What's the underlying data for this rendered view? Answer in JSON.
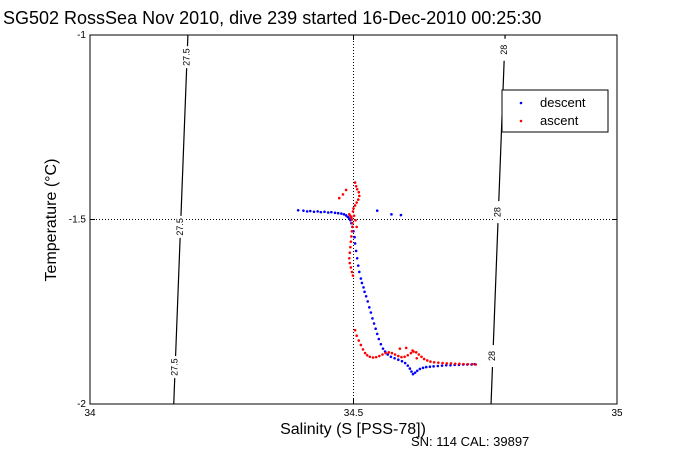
{
  "chart_data": {
    "type": "scatter",
    "title": "SG502 RossSea Nov 2010, dive 239 started 16-Dec-2010 00:25:30",
    "xlabel": "Salinity (S [PSS-78])",
    "ylabel": "Temperature (°C)",
    "footer": "SN: 114  CAL: 39897",
    "xlim": [
      34,
      35
    ],
    "ylim": [
      -2,
      -1
    ],
    "xticks": [
      34,
      34.5,
      35
    ],
    "xtick_labels": [
      "34",
      "34.5",
      "35"
    ],
    "yticks": [
      -1,
      -1.5,
      -2
    ],
    "ytick_labels": [
      "-1",
      "-1.5",
      "-2"
    ],
    "grid": "dotted lines at x=34.5 and y=-1.5",
    "legend_position": "top-right",
    "isopycnals": [
      {
        "label": "27.5",
        "color": "#000000",
        "points": [
          [
            34.1858,
            -1.0
          ],
          [
            34.1589,
            -2.0
          ]
        ],
        "label_y": [
          -1.06,
          -1.52,
          -1.9
        ]
      },
      {
        "label": "28",
        "color": "#000000",
        "points": [
          [
            34.7877,
            -1.0
          ],
          [
            34.761,
            -2.0
          ]
        ],
        "label_y": [
          -1.04,
          -1.48,
          -1.87
        ]
      }
    ],
    "series": [
      {
        "name": "descent",
        "color": "#0000ff",
        "marker": "dot",
        "points": [
          [
            34.395,
            -1.475
          ],
          [
            34.405,
            -1.476
          ],
          [
            34.412,
            -1.478
          ],
          [
            34.418,
            -1.477
          ],
          [
            34.425,
            -1.479
          ],
          [
            34.432,
            -1.478
          ],
          [
            34.438,
            -1.48
          ],
          [
            34.445,
            -1.479
          ],
          [
            34.452,
            -1.481
          ],
          [
            34.458,
            -1.48
          ],
          [
            34.465,
            -1.482
          ],
          [
            34.471,
            -1.483
          ],
          [
            34.477,
            -1.484
          ],
          [
            34.482,
            -1.486
          ],
          [
            34.486,
            -1.489
          ],
          [
            34.489,
            -1.493
          ],
          [
            34.492,
            -1.497
          ],
          [
            34.494,
            -1.502
          ],
          [
            34.496,
            -1.51
          ],
          [
            34.498,
            -1.52
          ],
          [
            34.5,
            -1.532
          ],
          [
            34.502,
            -1.548
          ],
          [
            34.503,
            -1.565
          ],
          [
            34.505,
            -1.585
          ],
          [
            34.507,
            -1.605
          ],
          [
            34.509,
            -1.625
          ],
          [
            34.511,
            -1.642
          ],
          [
            34.514,
            -1.66
          ],
          [
            34.516,
            -1.672
          ],
          [
            34.519,
            -1.684
          ],
          [
            34.521,
            -1.696
          ],
          [
            34.524,
            -1.708
          ],
          [
            34.527,
            -1.722
          ],
          [
            34.53,
            -1.738
          ],
          [
            34.533,
            -1.752
          ],
          [
            34.536,
            -1.768
          ],
          [
            34.539,
            -1.782
          ],
          [
            34.542,
            -1.796
          ],
          [
            34.545,
            -1.81
          ],
          [
            34.548,
            -1.824
          ],
          [
            34.552,
            -1.838
          ],
          [
            34.556,
            -1.85
          ],
          [
            34.56,
            -1.858
          ],
          [
            34.565,
            -1.866
          ],
          [
            34.571,
            -1.872
          ],
          [
            34.578,
            -1.876
          ],
          [
            34.585,
            -1.88
          ],
          [
            34.592,
            -1.884
          ],
          [
            34.598,
            -1.889
          ],
          [
            34.603,
            -1.896
          ],
          [
            34.607,
            -1.904
          ],
          [
            34.61,
            -1.912
          ],
          [
            34.613,
            -1.919
          ],
          [
            34.617,
            -1.915
          ],
          [
            34.621,
            -1.91
          ],
          [
            34.626,
            -1.905
          ],
          [
            34.632,
            -1.902
          ],
          [
            34.638,
            -1.9
          ],
          [
            34.645,
            -1.899
          ],
          [
            34.652,
            -1.898
          ],
          [
            34.66,
            -1.897
          ],
          [
            34.668,
            -1.896
          ],
          [
            34.676,
            -1.895
          ],
          [
            34.684,
            -1.895
          ],
          [
            34.692,
            -1.894
          ],
          [
            34.7,
            -1.894
          ],
          [
            34.708,
            -1.893
          ],
          [
            34.716,
            -1.893
          ],
          [
            34.724,
            -1.893
          ],
          [
            34.73,
            -1.892
          ],
          [
            34.545,
            -1.476
          ],
          [
            34.572,
            -1.486
          ],
          [
            34.59,
            -1.488
          ]
        ]
      },
      {
        "name": "ascent",
        "color": "#ff0000",
        "marker": "dot",
        "points": [
          [
            34.492,
            -1.486
          ],
          [
            34.494,
            -1.49
          ],
          [
            34.496,
            -1.494
          ],
          [
            34.497,
            -1.5
          ],
          [
            34.498,
            -1.51
          ],
          [
            34.498,
            -1.52
          ],
          [
            34.497,
            -1.532
          ],
          [
            34.496,
            -1.546
          ],
          [
            34.495,
            -1.56
          ],
          [
            34.494,
            -1.575
          ],
          [
            34.493,
            -1.59
          ],
          [
            34.492,
            -1.605
          ],
          [
            34.493,
            -1.618
          ],
          [
            34.495,
            -1.63
          ],
          [
            34.497,
            -1.642
          ],
          [
            34.499,
            -1.652
          ],
          [
            34.503,
            -1.4
          ],
          [
            34.505,
            -1.41
          ],
          [
            34.507,
            -1.418
          ],
          [
            34.51,
            -1.426
          ],
          [
            34.511,
            -1.436
          ],
          [
            34.509,
            -1.446
          ],
          [
            34.506,
            -1.454
          ],
          [
            34.503,
            -1.462
          ],
          [
            34.5,
            -1.47
          ],
          [
            34.499,
            -1.478
          ],
          [
            34.501,
            -1.49
          ],
          [
            34.504,
            -1.502
          ],
          [
            34.506,
            -1.52
          ],
          [
            34.486,
            -1.42
          ],
          [
            34.48,
            -1.432
          ],
          [
            34.473,
            -1.442
          ],
          [
            34.503,
            -1.8
          ],
          [
            34.506,
            -1.815
          ],
          [
            34.51,
            -1.828
          ],
          [
            34.514,
            -1.84
          ],
          [
            34.518,
            -1.852
          ],
          [
            34.522,
            -1.862
          ],
          [
            34.526,
            -1.868
          ],
          [
            34.531,
            -1.872
          ],
          [
            34.537,
            -1.874
          ],
          [
            34.543,
            -1.873
          ],
          [
            34.549,
            -1.87
          ],
          [
            34.555,
            -1.866
          ],
          [
            34.561,
            -1.862
          ],
          [
            34.567,
            -1.86
          ],
          [
            34.573,
            -1.862
          ],
          [
            34.579,
            -1.866
          ],
          [
            34.585,
            -1.87
          ],
          [
            34.591,
            -1.873
          ],
          [
            34.597,
            -1.872
          ],
          [
            34.603,
            -1.868
          ],
          [
            34.609,
            -1.862
          ],
          [
            34.614,
            -1.858
          ],
          [
            34.619,
            -1.86
          ],
          [
            34.624,
            -1.866
          ],
          [
            34.629,
            -1.872
          ],
          [
            34.634,
            -1.878
          ],
          [
            34.64,
            -1.882
          ],
          [
            34.646,
            -1.885
          ],
          [
            34.653,
            -1.887
          ],
          [
            34.661,
            -1.888
          ],
          [
            34.669,
            -1.889
          ],
          [
            34.677,
            -1.89
          ],
          [
            34.685,
            -1.89
          ],
          [
            34.693,
            -1.891
          ],
          [
            34.701,
            -1.891
          ],
          [
            34.709,
            -1.892
          ],
          [
            34.717,
            -1.892
          ],
          [
            34.725,
            -1.892
          ],
          [
            34.732,
            -1.893
          ],
          [
            34.588,
            -1.85
          ],
          [
            34.6,
            -1.848
          ],
          [
            34.612,
            -1.855
          ],
          [
            34.62,
            -1.876
          ]
        ]
      }
    ]
  }
}
